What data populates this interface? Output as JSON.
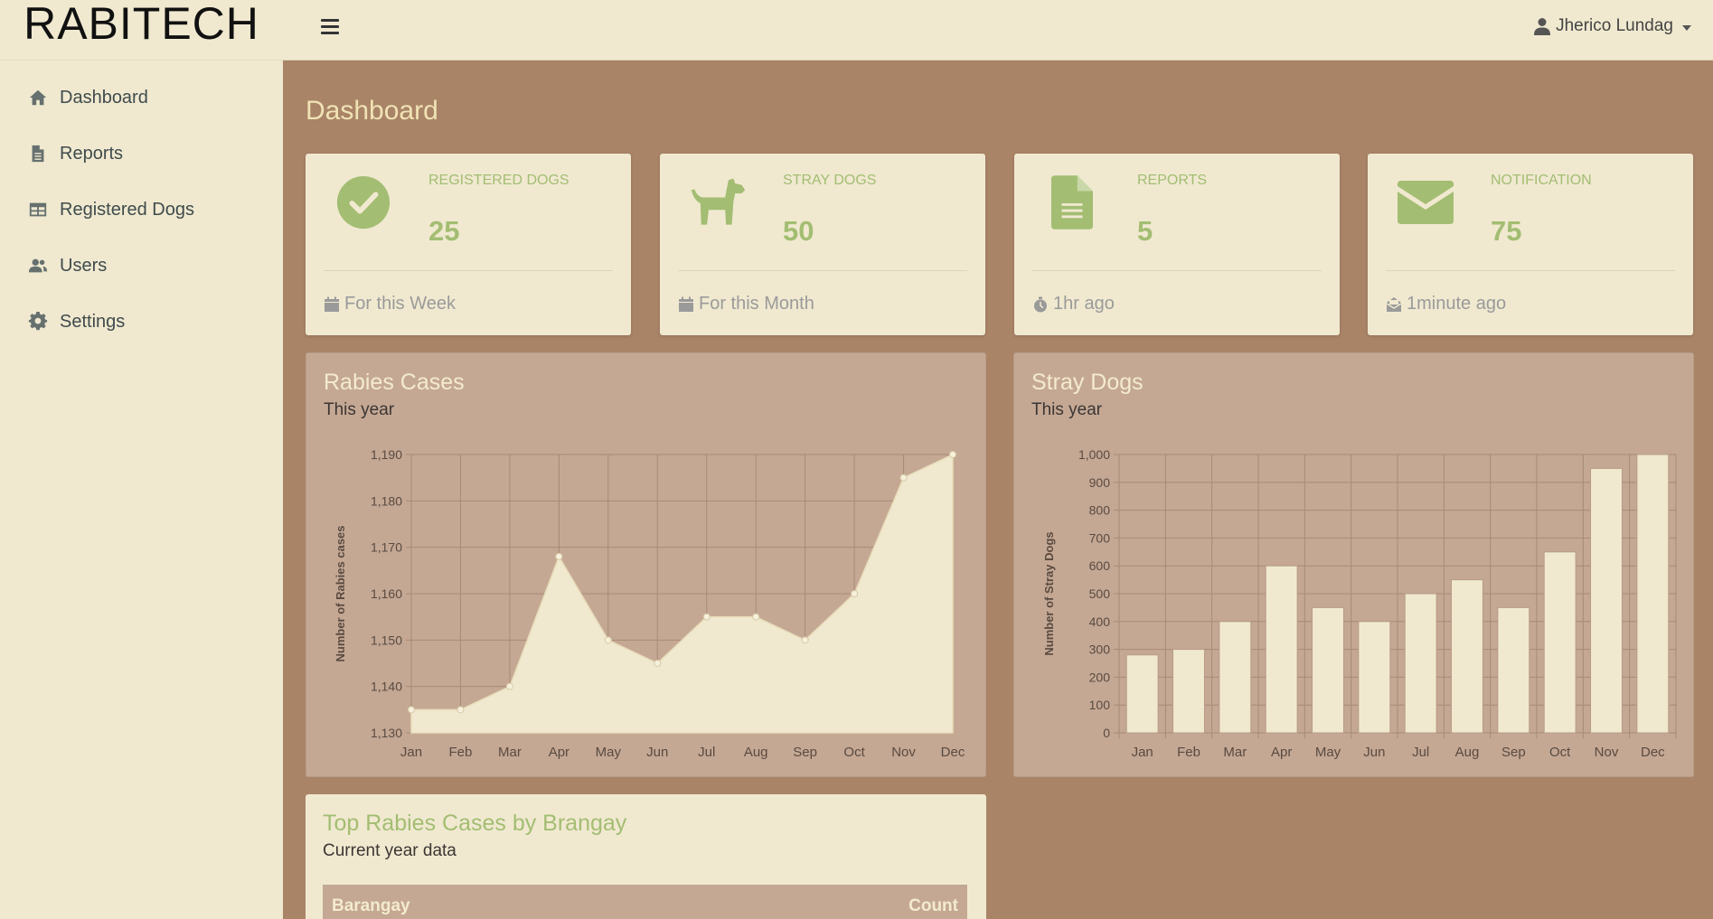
{
  "brand": "RABITECH",
  "user": {
    "name": "Jherico Lundag",
    "icon": "user-icon"
  },
  "sidebar": {
    "items": [
      {
        "label": "Dashboard",
        "icon": "home-icon"
      },
      {
        "label": "Reports",
        "icon": "file-icon"
      },
      {
        "label": "Registered Dogs",
        "icon": "table-icon"
      },
      {
        "label": "Users",
        "icon": "users-icon"
      },
      {
        "label": "Settings",
        "icon": "gear-icon"
      }
    ]
  },
  "page": {
    "title": "Dashboard"
  },
  "cards": [
    {
      "category": "REGISTERED DOGS",
      "value": "25",
      "footer": "For this Week",
      "icon": "check-circle-icon",
      "footer_icon": "calendar-icon"
    },
    {
      "category": "STRAY DOGS",
      "value": "50",
      "footer": "For this Month",
      "icon": "dog-icon",
      "footer_icon": "calendar-icon"
    },
    {
      "category": "REPORTS",
      "value": "5",
      "footer": "1hr ago",
      "icon": "document-icon",
      "footer_icon": "stopwatch-icon"
    },
    {
      "category": "NOTIFICATION",
      "value": "75",
      "footer": "1minute ago",
      "icon": "envelope-icon",
      "footer_icon": "envelope-open-icon"
    }
  ],
  "colors": {
    "accent": "#a3bd72",
    "background": "#a98467",
    "panel": "#f0e9d0",
    "chart_panel": "#c4a894",
    "chart_fill": "#f0e9d0"
  },
  "chart_data": [
    {
      "type": "area",
      "title": "Rabies Cases",
      "subtitle": "This year",
      "ylabel": "Number of Rabies cases",
      "xlabel": "",
      "categories": [
        "Jan",
        "Feb",
        "Mar",
        "Apr",
        "May",
        "Jun",
        "Jul",
        "Aug",
        "Sep",
        "Oct",
        "Nov",
        "Dec"
      ],
      "values": [
        1135,
        1135,
        1140,
        1168,
        1150,
        1145,
        1155,
        1155,
        1150,
        1160,
        1185,
        1190
      ],
      "ylim": [
        1130,
        1190
      ],
      "yticks": [
        1130,
        1140,
        1150,
        1160,
        1170,
        1180,
        1190
      ],
      "ytick_labels": [
        "1,130",
        "1,140",
        "1,150",
        "1,160",
        "1,170",
        "1,180",
        "1,190"
      ],
      "grid": true
    },
    {
      "type": "bar",
      "title": "Stray Dogs",
      "subtitle": "This year",
      "ylabel": "Number of Stray Dogs",
      "xlabel": "",
      "categories": [
        "Jan",
        "Feb",
        "Mar",
        "Apr",
        "May",
        "Jun",
        "Jul",
        "Aug",
        "Sep",
        "Oct",
        "Nov",
        "Dec"
      ],
      "values": [
        280,
        300,
        400,
        600,
        450,
        400,
        500,
        550,
        450,
        650,
        950,
        1000
      ],
      "ylim": [
        0,
        1000
      ],
      "yticks": [
        0,
        100,
        200,
        300,
        400,
        500,
        600,
        700,
        800,
        900,
        1000
      ],
      "ytick_labels": [
        "0",
        "100",
        "200",
        "300",
        "400",
        "500",
        "600",
        "700",
        "800",
        "900",
        "1,000"
      ],
      "grid": true
    }
  ],
  "table": {
    "title": "Top Rabies Cases by Brangay",
    "subtitle": "Current year data",
    "columns": [
      "Barangay",
      "Count"
    ]
  }
}
